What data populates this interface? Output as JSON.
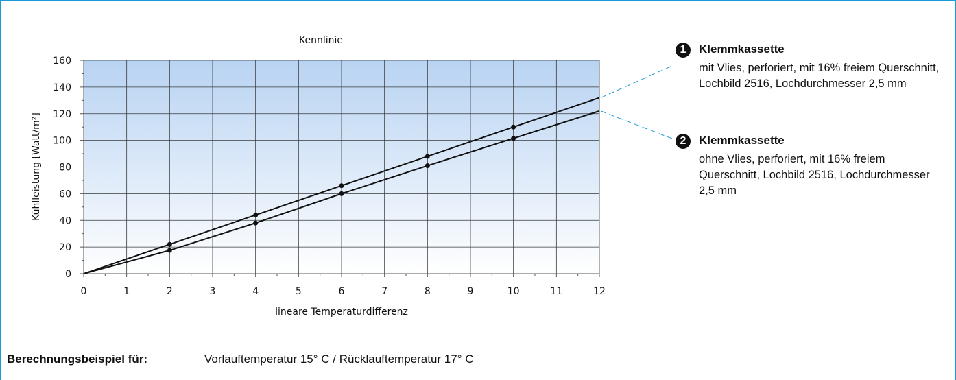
{
  "chart_data": {
    "type": "line",
    "title": "Kennlinie",
    "xlabel": "lineare Temperaturdifferenz",
    "ylabel": "Kühlleistung [Watt/m²]",
    "xlim": [
      0,
      12
    ],
    "ylim": [
      0,
      160
    ],
    "xticks": [
      "0",
      "1",
      "2",
      "3",
      "4",
      "5",
      "6",
      "7",
      "8",
      "9",
      "10",
      "11",
      "12"
    ],
    "yticks": [
      "0",
      "20",
      "40",
      "60",
      "80",
      "100",
      "120",
      "140",
      "160"
    ],
    "grid": true,
    "series": [
      {
        "name": "1",
        "x": [
          0,
          2,
          4,
          6,
          8,
          10,
          12
        ],
        "y": [
          0,
          22,
          44,
          66,
          88,
          110,
          132
        ],
        "markers": [
          2,
          4,
          6,
          8,
          10
        ]
      },
      {
        "name": "2",
        "x": [
          0,
          2,
          4,
          6,
          8,
          10,
          12
        ],
        "y": [
          0,
          17.5,
          38,
          60,
          81,
          101.5,
          122
        ],
        "markers": [
          2,
          4,
          6,
          8,
          10
        ]
      }
    ]
  },
  "legend": [
    {
      "num": "1",
      "title": "Klemmkassette",
      "desc": "mit Vlies, perforiert, mit 16% freiem Querschnitt, Lochbild 2516, Lochdurchmesser 2,5 mm"
    },
    {
      "num": "2",
      "title": "Klemmkassette",
      "desc": "ohne Vlies, perforiert, mit 16% freiem Querschnitt, Lochbild 2516, Lochdurchmesser 2,5 mm"
    }
  ],
  "footer": {
    "label": "Berechnungsbeispiel für:",
    "text": "Vorlauftemperatur 15° C / Rücklauftemperatur 17° C"
  },
  "colors": {
    "frame": "#1a9ad6",
    "line": "#111111",
    "connector": "#1a9ad6",
    "bg_top": "#b8d3f2",
    "bg_bottom": "#ffffff",
    "grid": "#3a3a3a"
  }
}
